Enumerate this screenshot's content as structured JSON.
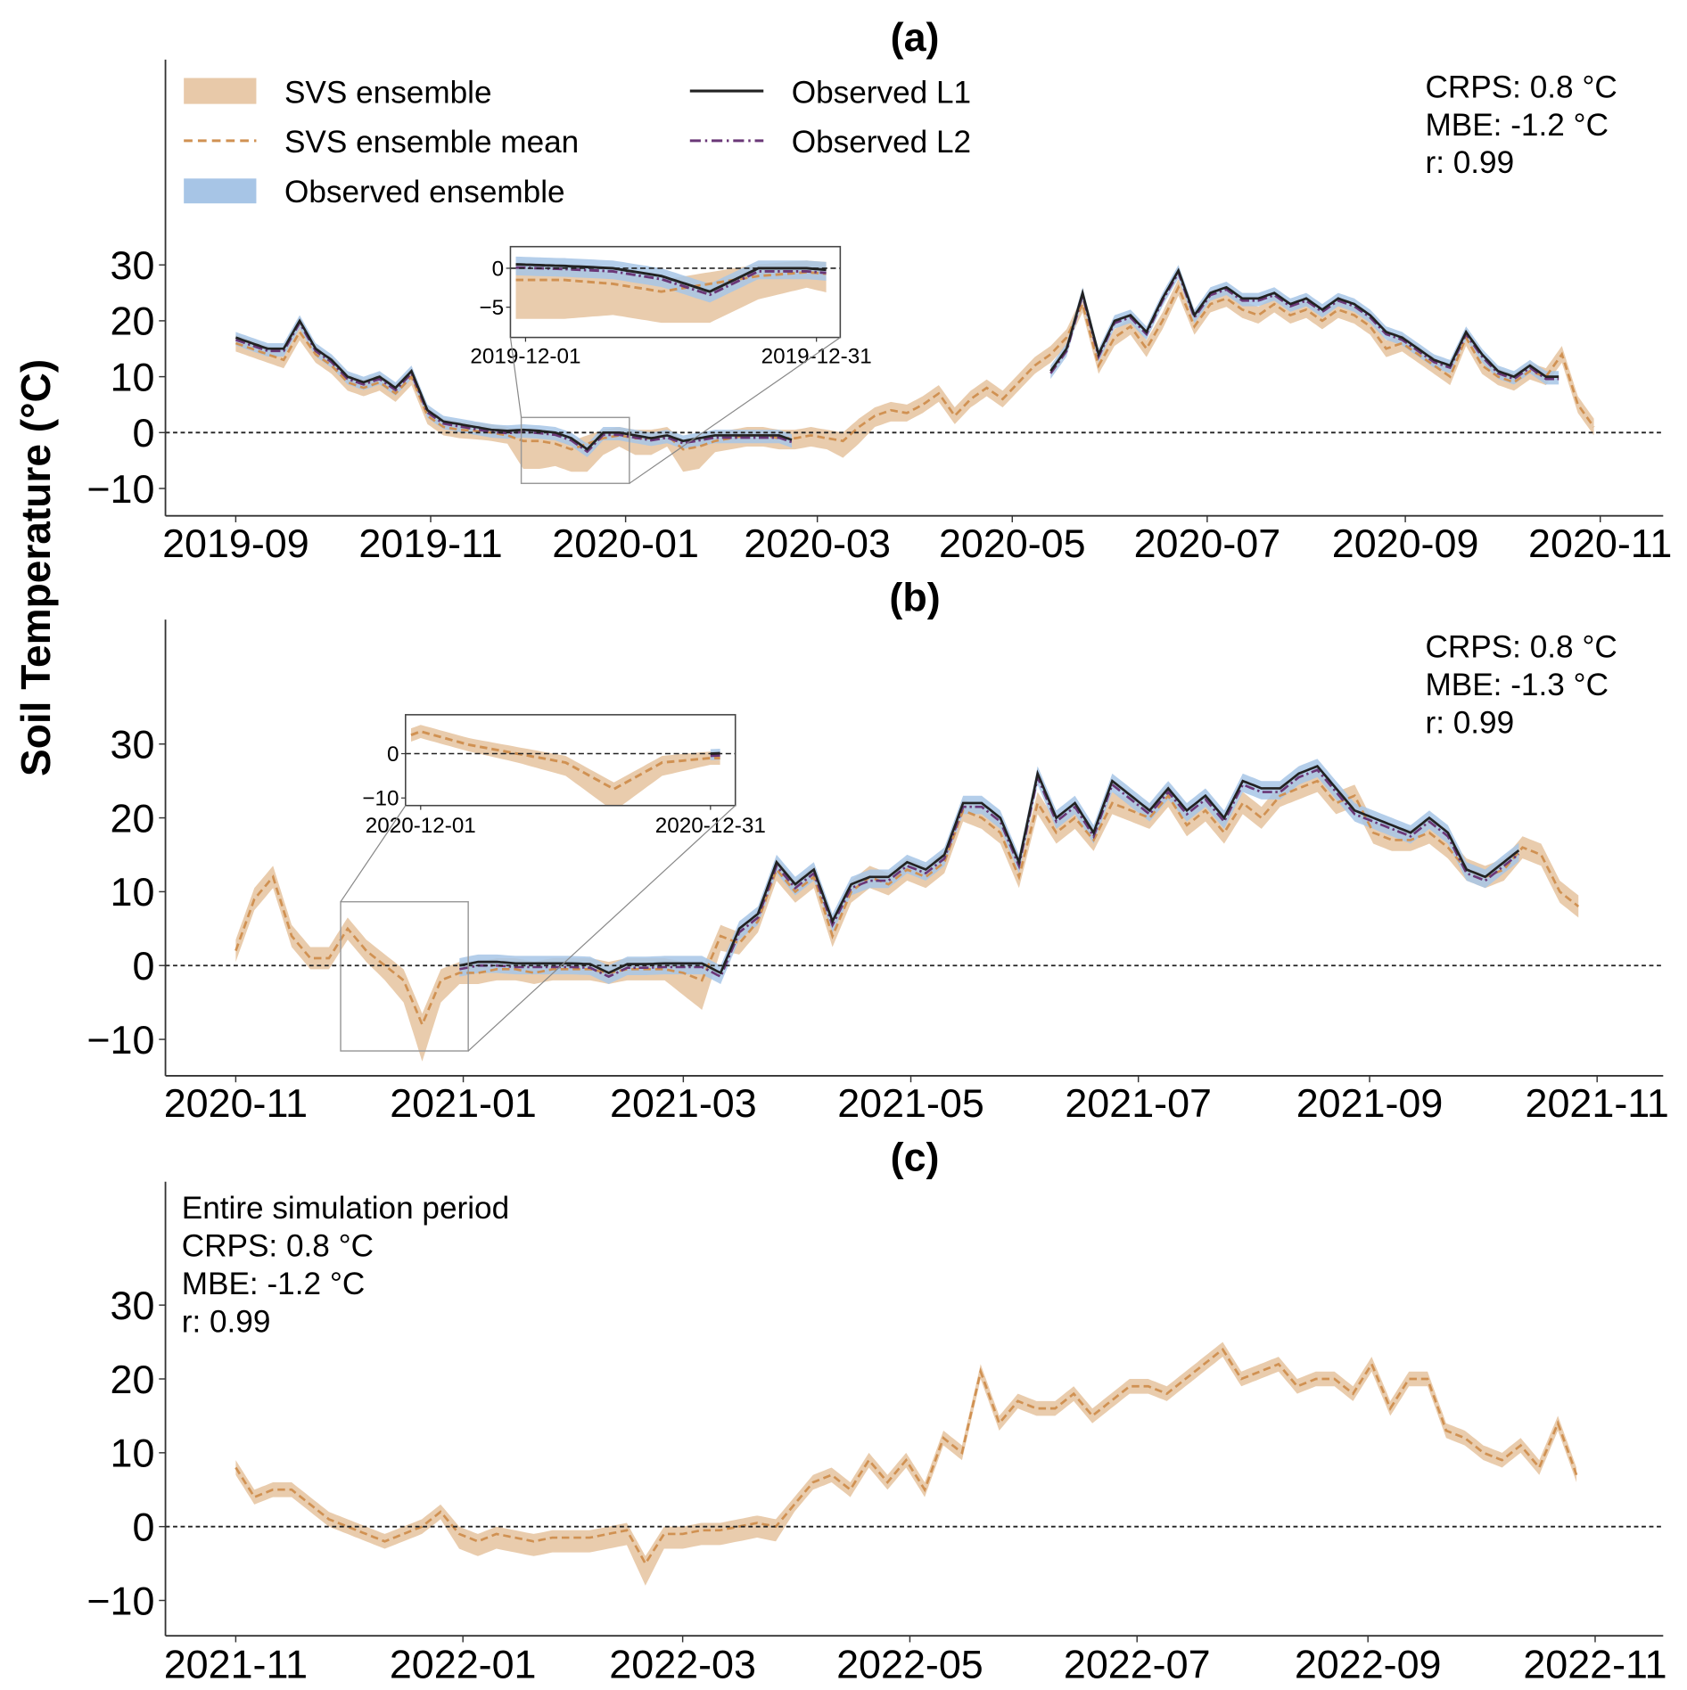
{
  "figure": {
    "ylabel": "Soil Temperature (°C)"
  },
  "legend": {
    "svs_ensemble": "SVS ensemble",
    "svs_mean": "SVS ensemble mean",
    "obs_ensemble": "Observed ensemble",
    "obs_l1": "Observed L1",
    "obs_l2": "Observed L2"
  },
  "colors": {
    "svs_band": "#e8c9a9",
    "svs_mean": "#d09152",
    "obs_band": "#a7c5e6",
    "obs_l1": "#222222",
    "obs_l2": "#6a3777",
    "zero_line": "#222222"
  },
  "chart_data": [
    {
      "id": "a",
      "title": "(a)",
      "type": "line",
      "xlabel": "",
      "ylabel": "Soil Temperature (°C)",
      "start_date": "2019-09-01",
      "step_days": 5,
      "x_ticks": [
        "2019-09",
        "2019-11",
        "2020-01",
        "2020-03",
        "2020-05",
        "2020-07",
        "2020-09",
        "2020-11"
      ],
      "y_ticks": [
        30,
        20,
        10,
        0,
        -10
      ],
      "ylim": [
        -15,
        67
      ],
      "stats": [
        "CRPS: 0.8 °C",
        "MBE: -1.2 °C",
        "r:  0.99"
      ],
      "svs_mean": [
        16,
        15,
        14,
        13,
        18,
        14,
        12,
        9,
        8,
        9,
        7,
        10,
        3,
        1,
        0.5,
        0.3,
        0,
        -0.5,
        -1.5,
        -1.5,
        -2,
        -3,
        -2,
        -1,
        -0.5,
        -1,
        -1,
        -0.5,
        -3,
        -2.5,
        -1.5,
        -1,
        -0.5,
        -0.5,
        -1,
        -1,
        -0.5,
        -1,
        -1.5,
        1,
        3,
        4,
        3.5,
        5,
        7,
        3,
        6,
        8,
        6,
        9,
        12,
        14,
        17,
        23,
        12,
        17,
        19,
        15,
        20,
        26,
        19,
        23,
        24,
        22,
        21,
        23,
        21,
        22,
        20,
        22,
        21,
        19,
        15,
        16,
        14,
        12,
        10,
        17,
        12,
        10,
        9,
        11,
        10,
        14,
        5,
        1
      ],
      "svs_spread_below": [
        1.5,
        1.5,
        1.5,
        1.5,
        1.5,
        1.5,
        1.5,
        1.5,
        1.5,
        1.5,
        1.5,
        1.5,
        1.5,
        1.5,
        1.5,
        1.5,
        1.5,
        1.5,
        5,
        5,
        4,
        4,
        5,
        3,
        2,
        3,
        3,
        2,
        4,
        4,
        2,
        2,
        2,
        2,
        2,
        2,
        2,
        2,
        3,
        3,
        2,
        2,
        1.5,
        1.5,
        1.5,
        1.5,
        1.5,
        1.5,
        1.5,
        1.5,
        1.5,
        1.5,
        1.5,
        1.5,
        1.5,
        1.5,
        1.5,
        1.5,
        1.5,
        1.5,
        1.5,
        1.5,
        1.5,
        1.5,
        1.5,
        1.5,
        1.5,
        1.5,
        1.5,
        1.5,
        1.5,
        1.5,
        1.5,
        1.5,
        1.5,
        1.5,
        1.5,
        1.5,
        1.5,
        1.5,
        1.5,
        1.5,
        1.5,
        1.5,
        1.5,
        1.5
      ],
      "svs_spread_above": 1.5,
      "obs_l1": [
        17,
        16,
        15,
        15,
        20,
        15,
        13,
        10,
        9,
        10,
        8,
        11,
        4,
        2,
        1.5,
        1,
        0.5,
        0.3,
        0.5,
        0.3,
        0,
        -1,
        -3,
        0,
        0,
        -0.5,
        -1,
        -0.5,
        -1.5,
        -1,
        -0.5,
        -0.5,
        -0.5,
        -0.5,
        -0.5,
        -1.5,
        null,
        null,
        null,
        null,
        null,
        null,
        null,
        null,
        null,
        null,
        null,
        null,
        null,
        null,
        null,
        11,
        15,
        25,
        14,
        20,
        21,
        18,
        24,
        29,
        21,
        25,
        26,
        24,
        24,
        25,
        23,
        24,
        22,
        24,
        23,
        21,
        18,
        17,
        15,
        13,
        12,
        18,
        14,
        11,
        10,
        12,
        10,
        10,
        null,
        null
      ],
      "obs_l2_offset": -0.4,
      "obs_band_halfwidth": 1,
      "inset": {
        "xlim": [
          "2019-12-01",
          "2019-12-31"
        ],
        "x_ticks": [
          "2019-12-01",
          "2019-12-31"
        ],
        "y_ticks": [
          0,
          -5
        ],
        "ylim": [
          -8.9,
          2.8
        ]
      }
    },
    {
      "id": "b",
      "title": "(b)",
      "type": "line",
      "xlabel": "",
      "ylabel": "Soil Temperature (°C)",
      "start_date": "2020-11-01",
      "step_days": 5,
      "x_ticks": [
        "2020-11",
        "2021-01",
        "2021-03",
        "2021-05",
        "2021-07",
        "2021-09",
        "2021-11"
      ],
      "y_ticks": [
        30,
        20,
        10,
        0,
        -10
      ],
      "ylim": [
        -15,
        47
      ],
      "stats": [
        "CRPS: 0.8 °C",
        "MBE: -1.3 °C",
        "r:  0.99"
      ],
      "svs_mean": [
        2,
        9,
        12,
        4,
        1,
        1,
        5,
        2,
        0,
        -2,
        -8,
        -2,
        -1,
        -1,
        -0.5,
        -0.5,
        -1,
        -0.5,
        -0.5,
        -0.5,
        -1,
        -0.5,
        -0.5,
        -0.5,
        -1,
        -2,
        4,
        3,
        6,
        13,
        10,
        12,
        4,
        10,
        12,
        11,
        13,
        12,
        14,
        21,
        20,
        18,
        12,
        22,
        18,
        20,
        17,
        22,
        21,
        20,
        23,
        19,
        21,
        18,
        22,
        20,
        23,
        24,
        25,
        22,
        23,
        18,
        17,
        17,
        18,
        16,
        13,
        12,
        13,
        16,
        15,
        10,
        8
      ],
      "svs_spread_below": [
        1.5,
        1.5,
        1.5,
        1.5,
        1.5,
        1.5,
        1.5,
        1.5,
        2,
        3,
        5,
        3,
        1.5,
        1.5,
        1.5,
        1.5,
        1.5,
        1.5,
        1.5,
        1.5,
        1.5,
        1.5,
        1.5,
        1.5,
        3,
        4,
        2,
        1.5,
        1.5,
        1.5,
        1.5,
        1.5,
        1.5,
        1.5,
        1.5,
        1.5,
        1.5,
        1.5,
        1.5,
        1.5,
        1.5,
        1.5,
        1.5,
        1.5,
        1.5,
        1.5,
        1.5,
        1.5,
        1.5,
        1.5,
        1.5,
        1.5,
        1.5,
        1.5,
        1.5,
        1.5,
        1.5,
        1.5,
        1.5,
        1.5,
        1.5,
        1.5,
        1.5,
        1.5,
        1.5,
        1.5,
        1.5,
        1.5,
        1.5,
        1.5,
        1.5,
        1.5,
        1.5
      ],
      "svs_spread_above": 1.5,
      "obs_l1": [
        null,
        null,
        null,
        null,
        null,
        null,
        null,
        null,
        null,
        null,
        null,
        null,
        0,
        0.5,
        0.5,
        0.3,
        0.3,
        0.3,
        0.3,
        0.2,
        -1,
        0.2,
        0.2,
        0.3,
        0.3,
        0.3,
        -1,
        5,
        7,
        14,
        11,
        13,
        6,
        11,
        12,
        12,
        14,
        13,
        15,
        22,
        22,
        20,
        14,
        26,
        20,
        22,
        18,
        25,
        23,
        21,
        24,
        21,
        23,
        20,
        25,
        24,
        24,
        26,
        27,
        24,
        21,
        20,
        19,
        18,
        20,
        18,
        13,
        12,
        14,
        16,
        null,
        null,
        null
      ],
      "obs_l2_offset": -0.5,
      "obs_band_halfwidth": 1,
      "inset": {
        "xlim": [
          "2020-12-01",
          "2020-12-31"
        ],
        "x_ticks": [
          "2020-12-01",
          "2020-12-31"
        ],
        "y_ticks": [
          0,
          -10
        ],
        "ylim": [
          -11.7,
          8.8
        ]
      }
    },
    {
      "id": "c",
      "title": "(c)",
      "type": "line",
      "xlabel": "",
      "ylabel": "Soil Temperature (°C)",
      "start_date": "2021-11-01",
      "step_days": 5,
      "x_ticks": [
        "2021-11",
        "2022-01",
        "2022-03",
        "2022-05",
        "2022-07",
        "2022-09",
        "2022-11"
      ],
      "y_ticks": [
        30,
        20,
        10,
        0,
        -10
      ],
      "ylim": [
        -15,
        47
      ],
      "stats": [
        "Entire simulation period",
        "CRPS: 0.8 °C",
        "MBE: -1.2 °C",
        "r:  0.99"
      ],
      "svs_mean": [
        8,
        4,
        5,
        5,
        3,
        1,
        0,
        -1,
        -2,
        -1,
        0,
        2,
        -1,
        -2,
        -1,
        -1.5,
        -2,
        -1.5,
        -1.5,
        -1.5,
        -1,
        -0.5,
        -5,
        -1,
        -1,
        -0.5,
        -0.5,
        0,
        0.5,
        0,
        3,
        6,
        7,
        5,
        9,
        6,
        9,
        5,
        12,
        10,
        21,
        14,
        17,
        16,
        16,
        18,
        15,
        17,
        19,
        19,
        18,
        20,
        22,
        24,
        20,
        21,
        22,
        19,
        20,
        20,
        18,
        22,
        16,
        20,
        20,
        13,
        12,
        10,
        9,
        11,
        8,
        14,
        7
      ],
      "svs_spread_below": [
        1,
        1,
        1,
        1,
        1,
        1,
        1,
        1,
        1,
        1,
        1,
        1,
        2,
        2,
        2,
        2,
        2,
        2,
        2,
        2,
        2,
        2,
        3,
        2,
        2,
        2,
        2,
        2,
        2,
        2,
        1,
        1,
        1,
        1,
        1,
        1,
        1,
        1,
        1,
        1,
        1,
        1,
        1,
        1,
        1,
        1,
        1,
        1,
        1,
        1,
        1,
        1,
        1,
        1,
        1,
        1,
        1,
        1,
        1,
        1,
        1,
        1,
        1,
        1,
        1,
        1,
        1,
        1,
        1,
        1,
        1,
        1,
        1
      ],
      "svs_spread_above": 1,
      "obs_l1": null
    }
  ]
}
